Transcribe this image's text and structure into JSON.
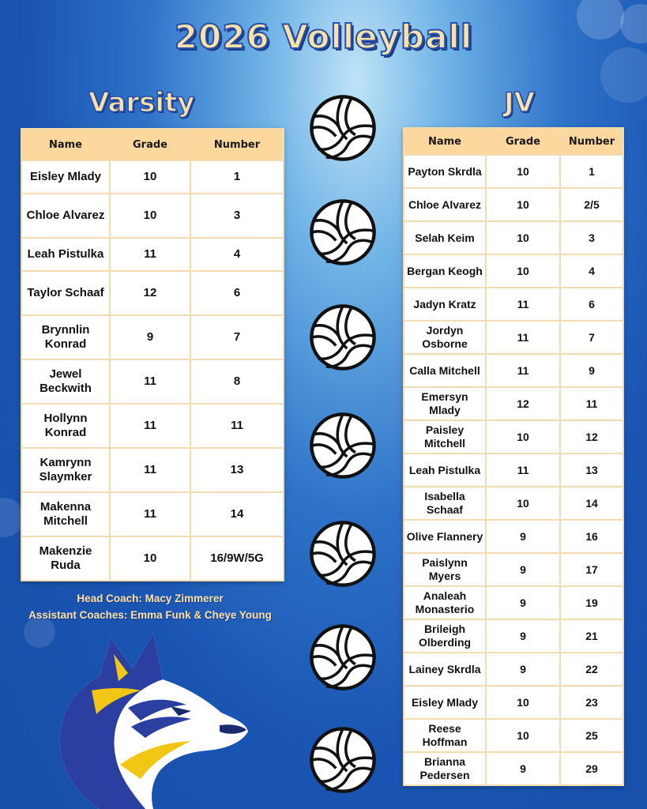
{
  "title": "2026 Volleyball",
  "varsity": {
    "heading": "Varsity",
    "columns": [
      "Name",
      "Grade",
      "Number"
    ],
    "rows": [
      {
        "name": "Eisley Mlady",
        "grade": "10",
        "number": "1"
      },
      {
        "name": "Chloe Alvarez",
        "grade": "10",
        "number": "3"
      },
      {
        "name": "Leah Pistulka",
        "grade": "11",
        "number": "4"
      },
      {
        "name": "Taylor Schaaf",
        "grade": "12",
        "number": "6"
      },
      {
        "name": "Brynnlin Konrad",
        "grade": "9",
        "number": "7"
      },
      {
        "name": "Jewel Beckwith",
        "grade": "11",
        "number": "8"
      },
      {
        "name": "Hollynn Konrad",
        "grade": "11",
        "number": "11"
      },
      {
        "name": "Kamrynn Slaymker",
        "grade": "11",
        "number": "13"
      },
      {
        "name": "Makenna Mitchell",
        "grade": "11",
        "number": "14"
      },
      {
        "name": "Makenzie Ruda",
        "grade": "10",
        "number": "16/9W/5G"
      }
    ]
  },
  "jv": {
    "heading": "JV",
    "columns": [
      "Name",
      "Grade",
      "Number"
    ],
    "rows": [
      {
        "name": "Payton Skrdla",
        "grade": "10",
        "number": "1"
      },
      {
        "name": "Chloe Alvarez",
        "grade": "10",
        "number": "2/5"
      },
      {
        "name": "Selah Keim",
        "grade": "10",
        "number": "3"
      },
      {
        "name": "Bergan Keogh",
        "grade": "10",
        "number": "4"
      },
      {
        "name": "Jadyn Kratz",
        "grade": "11",
        "number": "6"
      },
      {
        "name": "Jordyn Osborne",
        "grade": "11",
        "number": "7"
      },
      {
        "name": "Calla Mitchell",
        "grade": "11",
        "number": "9"
      },
      {
        "name": "Emersyn Mlady",
        "grade": "12",
        "number": "11"
      },
      {
        "name": "Paisley Mitchell",
        "grade": "10",
        "number": "12"
      },
      {
        "name": "Leah Pistulka",
        "grade": "11",
        "number": "13"
      },
      {
        "name": "Isabella Schaaf",
        "grade": "10",
        "number": "14"
      },
      {
        "name": "Olive Flannery",
        "grade": "9",
        "number": "16"
      },
      {
        "name": "Paislynn Myers",
        "grade": "9",
        "number": "17"
      },
      {
        "name": "Analeah Monasterio",
        "grade": "9",
        "number": "19"
      },
      {
        "name": "Brileigh Olberding",
        "grade": "9",
        "number": "21"
      },
      {
        "name": "Lainey Skrdla",
        "grade": "9",
        "number": "22"
      },
      {
        "name": "Eisley Mlady",
        "grade": "10",
        "number": "23"
      },
      {
        "name": "Reese Hoffman",
        "grade": "10",
        "number": "25"
      },
      {
        "name": "Brianna Pedersen",
        "grade": "9",
        "number": "29"
      }
    ]
  },
  "coaches": {
    "head": "Head Coach: Macy Zimmerer",
    "assistants": "Assistant Coaches: Emma Funk & Cheye Young"
  },
  "icons": {
    "volleyball": "volleyball-icon",
    "mascot": "husky-mascot-logo"
  },
  "colors": {
    "heading_fill": "#fde2a8",
    "heading_outline": "#2a4fa8",
    "table_header": "#fcd79e",
    "mascot_blue": "#2b3fa0",
    "mascot_yellow": "#f2c614"
  }
}
